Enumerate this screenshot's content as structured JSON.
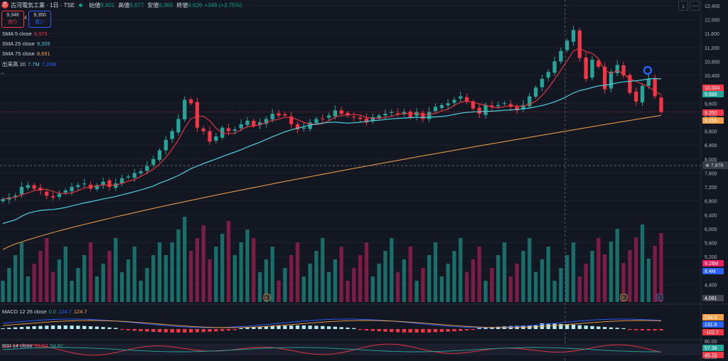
{
  "header": {
    "logo_text": "古",
    "symbol": "古河電気工業 · 1日 · TSE",
    "open_label": "始値",
    "open": "9,401",
    "high_label": "高値",
    "high": "9,677",
    "low_label": "安値",
    "low": "9,365",
    "close_label": "終値",
    "close": "9,626",
    "change": "+348 (+3.75%)"
  },
  "trade": {
    "sell_price": "9,346",
    "sell_label": "売り",
    "buy_price": "9,350",
    "buy_label": "買い",
    "spread": "4"
  },
  "indicators": {
    "sma5": {
      "label": "SMA 5 close",
      "value": "9,373",
      "color": "#f23645"
    },
    "sma25": {
      "label": "SMA 25 close",
      "value": "9,205",
      "color": "#4dd0e1"
    },
    "sma75": {
      "label": "SMA 75 close",
      "value": "8,691",
      "color": "#f7a24b"
    },
    "volume": {
      "label": "出来高 20",
      "v1": "7.7M",
      "v2": "7.29M"
    },
    "macd": {
      "label": "MACD 12 26 close",
      "v1": "0.0",
      "v2": "124.7",
      "v3": "124.7"
    },
    "rsi": {
      "label": "RSI 14 close",
      "v1": "56.53",
      "v2": "54.82"
    }
  },
  "toolbar": {
    "down_icon": "↓",
    "menu_icon": "⋯"
  },
  "axis": {
    "price_ticks": [
      "12,400",
      "12,000",
      "11,600",
      "11,200",
      "10,800",
      "10,400",
      "10,000",
      "9,600",
      "9,200",
      "8,800",
      "8,400",
      "8,000",
      "7,600",
      "7,200",
      "6,800",
      "6,400",
      "6,000",
      "5,600",
      "5,200",
      "4,800",
      "4,400",
      "4,000"
    ],
    "rsi_ticks": [
      "80.00",
      "20.00"
    ],
    "crosshair_price": "7,878",
    "tags": [
      {
        "text": "10,004",
        "color": "#f23645"
      },
      {
        "text": "9,888",
        "color": "#26a69a"
      },
      {
        "text": "9,350",
        "color": "#f23645"
      },
      {
        "text": "9,255",
        "color": "#f7a24b"
      },
      {
        "text": "9.28M",
        "color": "#e91e63"
      },
      {
        "text": "8.4M",
        "color": "#2962ff"
      },
      {
        "text": "4,081",
        "color": "#434651"
      },
      {
        "text": "234.5",
        "color": "#f7a24b"
      },
      {
        "text": "131.8",
        "color": "#2962ff"
      },
      {
        "text": "-102.7",
        "color": "#f23645"
      },
      {
        "text": "57.38",
        "color": "#26a69a"
      },
      {
        "text": "45.70",
        "color": "#f23645"
      }
    ],
    "marker_letters": [
      "E",
      "E",
      "4"
    ]
  },
  "colors": {
    "up": "#26a69a",
    "down": "#f23645",
    "vol_up": "#1a6e6a",
    "vol_down": "#7b1d44",
    "bg": "#131722",
    "grid": "#1e222d"
  },
  "chart_data": {
    "type": "candlestick",
    "closes": [
      6850,
      6900,
      6950,
      7200,
      7250,
      7150,
      7100,
      6950,
      6900,
      7000,
      7100,
      7200,
      7250,
      7300,
      7150,
      7250,
      7350,
      7200,
      7300,
      7450,
      7500,
      7600,
      7650,
      7800,
      8000,
      8250,
      8550,
      8800,
      9150,
      9700,
      9600,
      8900,
      8800,
      8500,
      8650,
      8900,
      8800,
      8850,
      9000,
      9100,
      8950,
      9050,
      9150,
      9300,
      9250,
      9250,
      9000,
      8850,
      8900,
      9050,
      9150,
      9150,
      9250,
      9400,
      9300,
      9250,
      9200,
      9150,
      9050,
      9200,
      9250,
      9300,
      9350,
      9300,
      9350,
      9200,
      9350,
      9150,
      9350,
      9500,
      9550,
      9600,
      9700,
      9800,
      9650,
      9450,
      9300,
      9550,
      9500,
      9550,
      9600,
      9500,
      9400,
      9550,
      9800,
      10050,
      10300,
      10500,
      10800,
      11100,
      11400,
      11700,
      10900,
      10300,
      10850,
      10650,
      10000,
      10500,
      10700,
      10400,
      9900,
      9650,
      10100,
      10300,
      9800,
      9350
    ],
    "sma_75_end": 9255,
    "volume_last": "9.28M"
  }
}
